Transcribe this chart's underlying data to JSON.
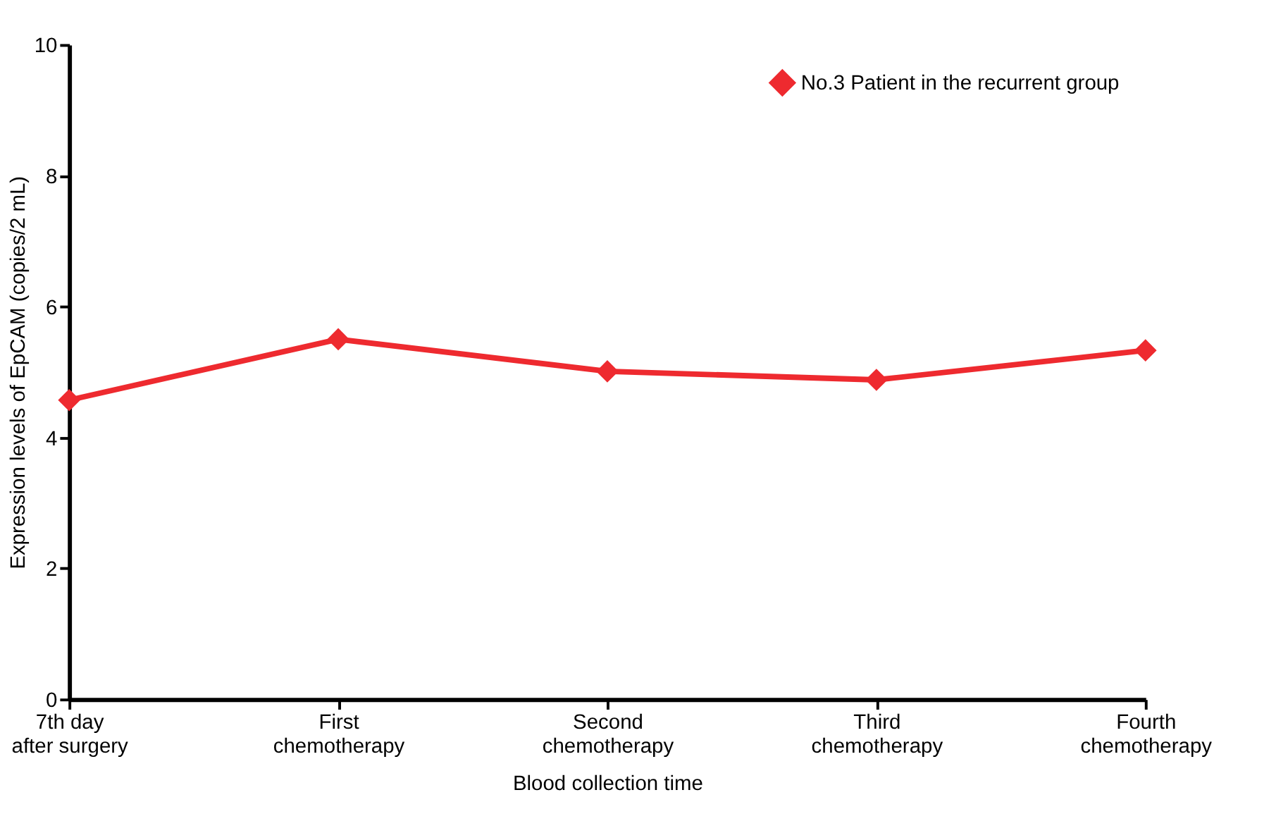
{
  "chart_data": {
    "type": "line",
    "categories": [
      "7th day\nafter surgery",
      "First\nchemotherapy",
      "Second\nchemotherapy",
      "Third\nchemotherapy",
      "Fourth\nchemotherapy"
    ],
    "series": [
      {
        "name": "No.3 Patient in the recurrent group",
        "color": "#ee2a2f",
        "values": [
          4.57,
          5.5,
          5.01,
          4.88,
          5.33
        ]
      }
    ],
    "xlabel": "Blood collection time",
    "ylabel": "Expression levels of EpCAM (copies/2 mL)",
    "ylim": [
      0,
      10
    ],
    "yticks": [
      0,
      2,
      4,
      6,
      8,
      10
    ],
    "marker": "diamond",
    "line_style": "solid",
    "legend": "top right",
    "grid": false
  }
}
